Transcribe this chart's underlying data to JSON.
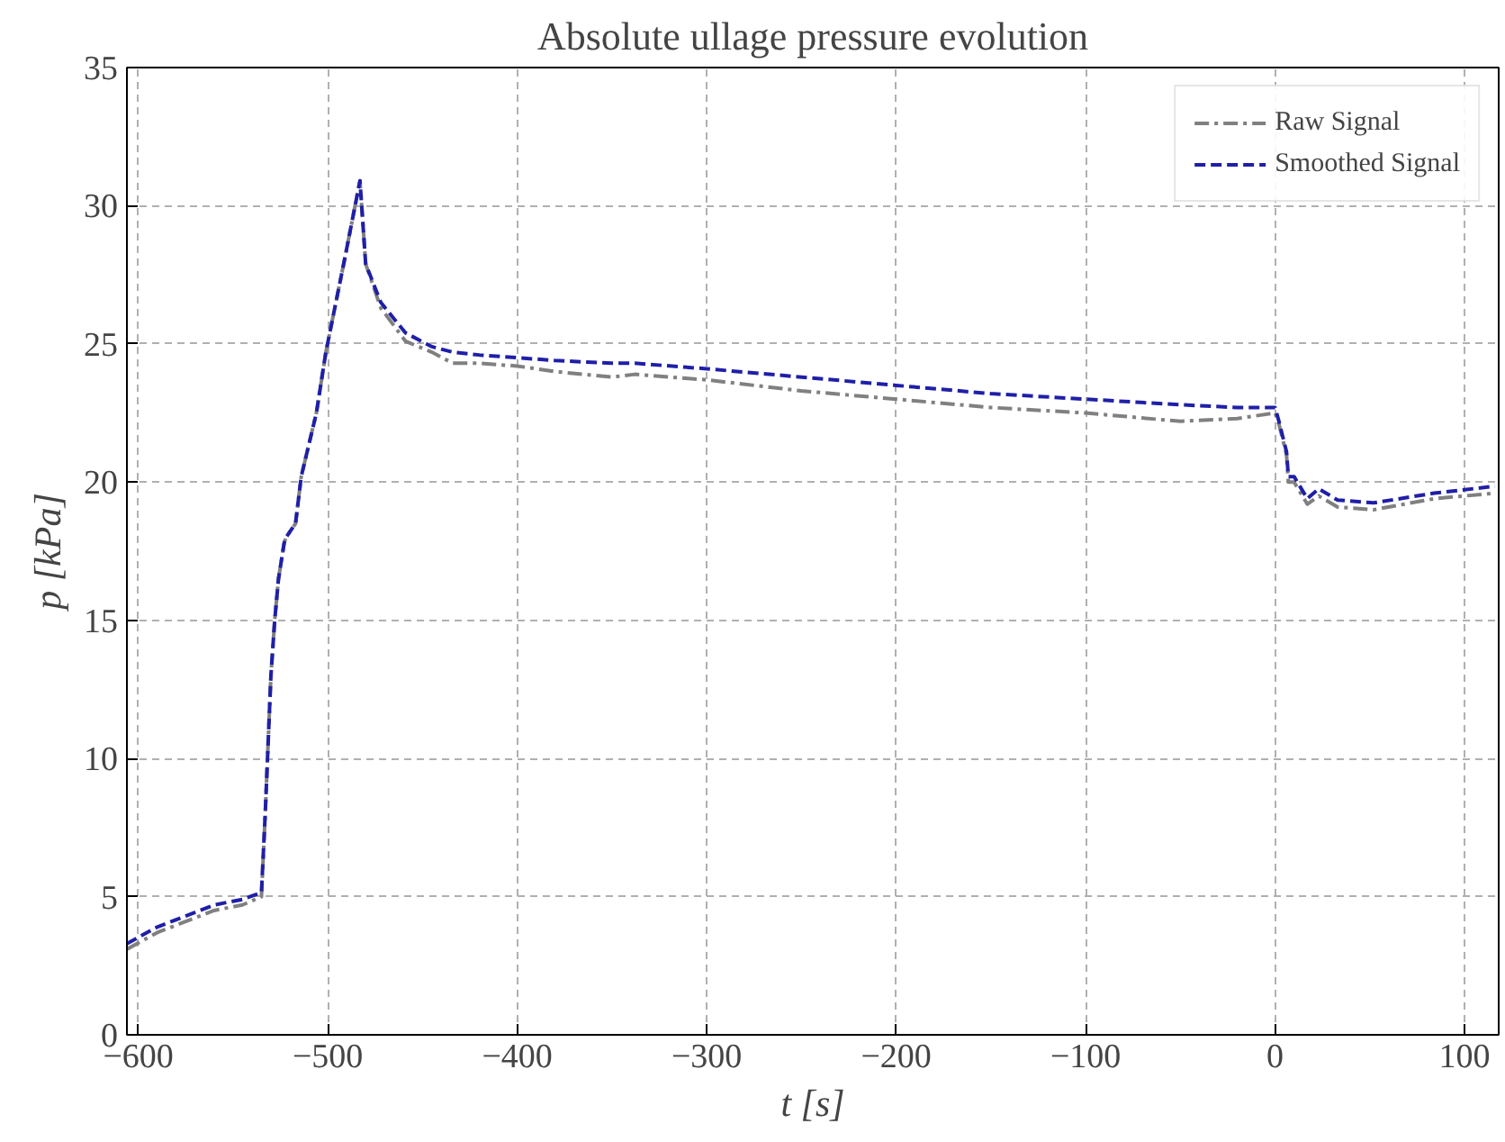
{
  "chart_data": {
    "type": "line",
    "title": "Absolute ullage pressure evolution",
    "xlabel": "t [s]",
    "ylabel": "p [kPa]",
    "xlim": [
      -606,
      118
    ],
    "ylim": [
      0,
      35
    ],
    "xticks": [
      -600,
      -500,
      -400,
      -300,
      -200,
      -100,
      0,
      100
    ],
    "yticks": [
      0,
      5,
      10,
      15,
      20,
      25,
      30,
      35
    ],
    "grid": true,
    "legend": "top right",
    "series": [
      {
        "name": "Raw Signal",
        "color": "#808080",
        "line_style": "dashdot",
        "x": [
          -606,
          -590,
          -575,
          -560,
          -545,
          -535,
          -533,
          -530,
          -528,
          -526,
          -523,
          -522,
          -517,
          -514,
          -506,
          -501,
          -491,
          -483,
          -480,
          -472,
          -459,
          -445,
          -434,
          -420,
          -400,
          -380,
          -350,
          -338,
          -300,
          -250,
          -200,
          -150,
          -100,
          -50,
          -20,
          0,
          2,
          6,
          7,
          10,
          17,
          23,
          33,
          52,
          84,
          116
        ],
        "values": [
          3.1,
          3.7,
          4.1,
          4.5,
          4.7,
          5.0,
          8,
          13,
          15,
          16.5,
          17.8,
          18.0,
          18.5,
          20.2,
          22.5,
          24.7,
          28.1,
          30.9,
          27.9,
          26.3,
          25.1,
          24.7,
          24.3,
          24.3,
          24.2,
          24.0,
          23.8,
          23.9,
          23.7,
          23.3,
          23.0,
          22.7,
          22.5,
          22.2,
          22.3,
          22.5,
          22.1,
          21.0,
          20.0,
          20.0,
          19.2,
          19.5,
          19.1,
          19.0,
          19.4,
          19.6
        ]
      },
      {
        "name": "Smoothed Signal",
        "color": "#1f1fa8",
        "line_style": "dashed",
        "x": [
          -606,
          -590,
          -575,
          -560,
          -545,
          -535,
          -533,
          -530,
          -528,
          -526,
          -523,
          -522,
          -517,
          -514,
          -506,
          -501,
          -491,
          -483,
          -480,
          -472,
          -459,
          -445,
          -434,
          -420,
          -400,
          -380,
          -350,
          -338,
          -300,
          -250,
          -200,
          -150,
          -100,
          -50,
          -20,
          0,
          2,
          6,
          7,
          10,
          17,
          23,
          33,
          52,
          84,
          116
        ],
        "values": [
          3.3,
          3.9,
          4.3,
          4.7,
          4.9,
          5.15,
          8,
          13,
          15,
          16.5,
          17.8,
          18.0,
          18.5,
          20.2,
          22.5,
          24.7,
          28.1,
          30.9,
          27.9,
          26.5,
          25.4,
          24.9,
          24.7,
          24.6,
          24.5,
          24.4,
          24.3,
          24.3,
          24.1,
          23.8,
          23.5,
          23.2,
          23.0,
          22.8,
          22.7,
          22.7,
          22.2,
          21.1,
          20.2,
          20.2,
          19.4,
          19.76,
          19.35,
          19.25,
          19.6,
          19.85
        ]
      }
    ]
  }
}
